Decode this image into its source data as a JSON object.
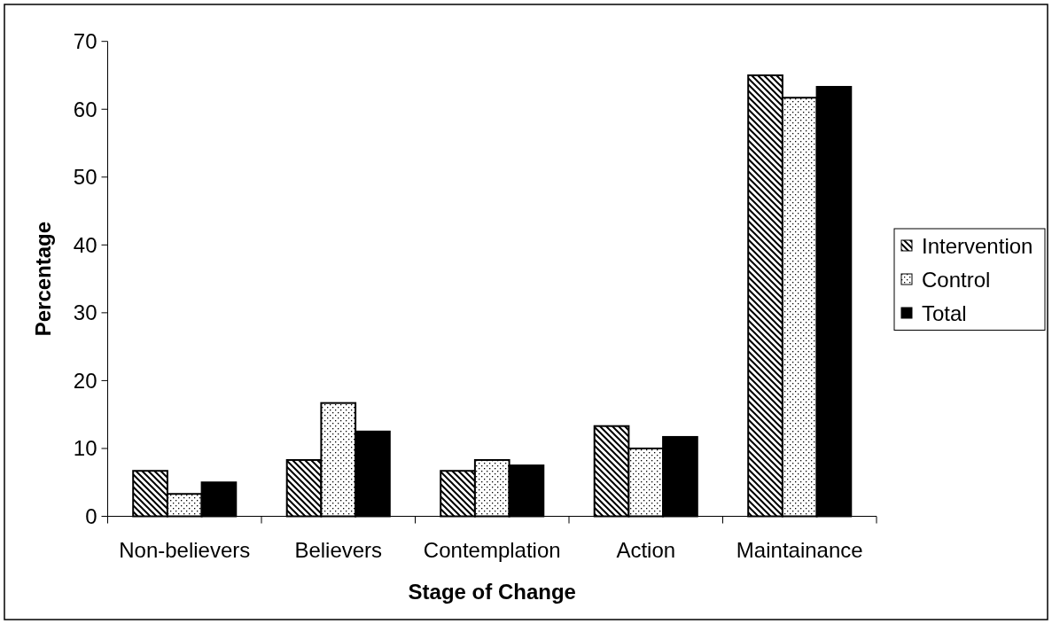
{
  "chart_data": {
    "type": "bar",
    "xlabel": "Stage of Change",
    "ylabel": "Percentage",
    "categories": [
      "Non-believers",
      "Believers",
      "Contemplation",
      "Action",
      "Maintainance"
    ],
    "series": [
      {
        "name": "Intervention",
        "color": "#000000",
        "values": [
          6.7,
          8.3,
          6.7,
          13.3,
          65.0
        ]
      },
      {
        "name": "Control",
        "color": "#000000",
        "values": [
          3.3,
          16.7,
          8.3,
          10.0,
          61.7
        ]
      },
      {
        "name": "Total",
        "color": "#000000",
        "values": [
          5.0,
          12.5,
          7.5,
          11.7,
          63.3
        ]
      }
    ],
    "ylim": [
      0,
      70
    ],
    "yticks": [
      0,
      10,
      20,
      30,
      40,
      50,
      60,
      70
    ],
    "legend": "right"
  }
}
